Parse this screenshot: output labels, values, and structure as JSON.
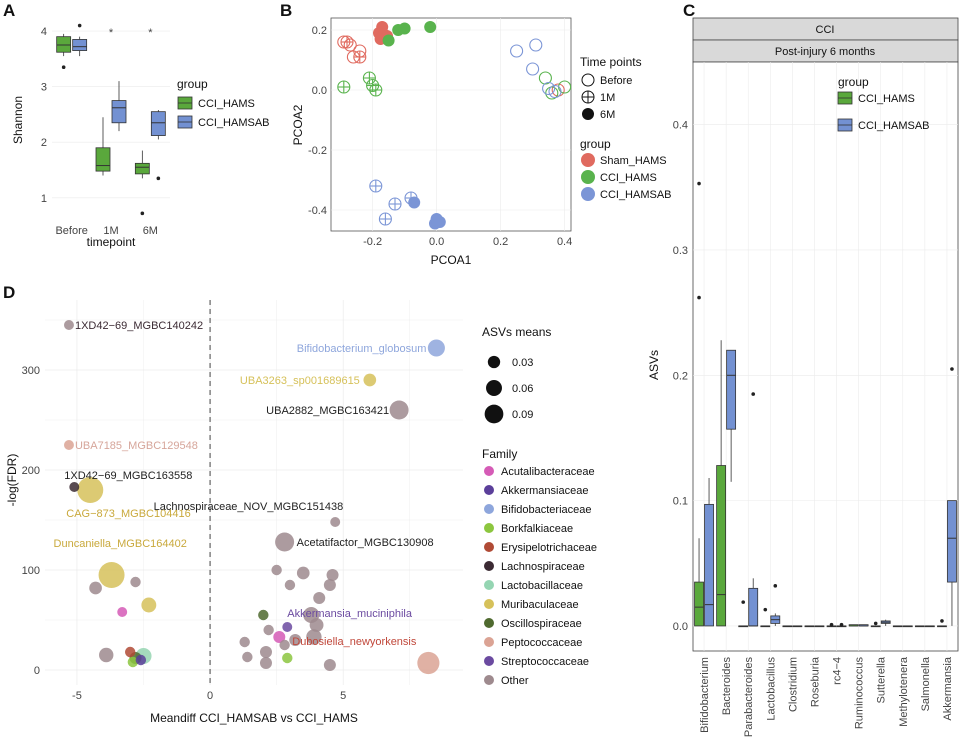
{
  "colors": {
    "hams": "#5aa83c",
    "hamsab": "#7391d2",
    "sham": "#e06a5f",
    "cci": "#59b34d",
    "hamsab_dot": "#7b95d6",
    "grid": "#ebebeb",
    "strip_bg": "#d9d9d9"
  },
  "chart_data": [
    {
      "panel": "A",
      "type": "boxplot",
      "ylabel": "Shannon",
      "xlabel": "timepoint",
      "categories": [
        "Before",
        "1M",
        "6M"
      ],
      "ylim": [
        0.6,
        4.2
      ],
      "yticks": [
        "1",
        "2",
        "3",
        "4"
      ],
      "significance": [
        "",
        "*",
        "*"
      ],
      "legend": {
        "title": "group",
        "labels": [
          "CCI_HAMS",
          "CCI_HAMSAB"
        ]
      },
      "series": [
        {
          "name": "CCI_HAMS",
          "boxes": [
            {
              "min": 3.55,
              "q1": 3.62,
              "median": 3.75,
              "q3": 3.9,
              "max": 3.95,
              "outliers": [
                3.35
              ]
            },
            {
              "min": 1.4,
              "q1": 1.48,
              "median": 1.58,
              "q3": 1.9,
              "max": 2.45,
              "outliers": []
            },
            {
              "min": 1.35,
              "q1": 1.43,
              "median": 1.55,
              "q3": 1.62,
              "max": 1.85,
              "outliers": [
                0.72
              ]
            }
          ]
        },
        {
          "name": "CCI_HAMSAB",
          "boxes": [
            {
              "min": 3.55,
              "q1": 3.65,
              "median": 3.72,
              "q3": 3.85,
              "max": 3.9,
              "outliers": [
                4.1
              ]
            },
            {
              "min": 2.2,
              "q1": 2.35,
              "median": 2.62,
              "q3": 2.75,
              "max": 3.1,
              "outliers": []
            },
            {
              "min": 2.05,
              "q1": 2.12,
              "median": 2.35,
              "q3": 2.55,
              "max": 2.58,
              "outliers": [
                1.35
              ]
            }
          ]
        }
      ]
    },
    {
      "panel": "B",
      "type": "scatter",
      "xlabel": "PCOA1",
      "ylabel": "PCOA2",
      "xlim": [
        -0.33,
        0.42
      ],
      "ylim": [
        -0.47,
        0.24
      ],
      "xticks": [
        -0.2,
        0.0,
        0.2,
        0.4
      ],
      "yticks": [
        0.2,
        0.0,
        -0.2,
        -0.4
      ],
      "xtick_labels": [
        "-0.2",
        "0.0",
        "0.2",
        "0.4"
      ],
      "ytick_labels": [
        "0.2",
        "0.0",
        "-0.2",
        "-0.4"
      ],
      "legend": {
        "time_title": "Time points",
        "time_labels": [
          "Before",
          "1M",
          "6M"
        ],
        "group_title": "group",
        "group_labels": [
          "Sham_HAMS",
          "CCI_HAMS",
          "CCI_HAMSAB"
        ]
      },
      "points": [
        {
          "x": -0.17,
          "y": 0.21,
          "g": 0,
          "t": 2
        },
        {
          "x": -0.18,
          "y": 0.19,
          "g": 0,
          "t": 2
        },
        {
          "x": -0.165,
          "y": 0.185,
          "g": 0,
          "t": 2
        },
        {
          "x": -0.175,
          "y": 0.17,
          "g": 0,
          "t": 2
        },
        {
          "x": -0.155,
          "y": 0.18,
          "g": 0,
          "t": 2
        },
        {
          "x": -0.12,
          "y": 0.2,
          "g": 1,
          "t": 2
        },
        {
          "x": -0.1,
          "y": 0.205,
          "g": 1,
          "t": 2
        },
        {
          "x": -0.02,
          "y": 0.21,
          "g": 1,
          "t": 2
        },
        {
          "x": -0.15,
          "y": 0.165,
          "g": 1,
          "t": 2
        },
        {
          "x": 0.0,
          "y": -0.43,
          "g": 2,
          "t": 2
        },
        {
          "x": 0.01,
          "y": -0.44,
          "g": 2,
          "t": 2
        },
        {
          "x": -0.005,
          "y": -0.445,
          "g": 2,
          "t": 2
        },
        {
          "x": -0.07,
          "y": -0.375,
          "g": 2,
          "t": 2
        },
        {
          "x": 0.003,
          "y": -0.438,
          "g": 2,
          "t": 2
        },
        {
          "x": -0.29,
          "y": 0.16,
          "g": 0,
          "t": 0
        },
        {
          "x": -0.27,
          "y": 0.15,
          "g": 0,
          "t": 0
        },
        {
          "x": -0.24,
          "y": 0.13,
          "g": 0,
          "t": 0
        },
        {
          "x": -0.26,
          "y": 0.11,
          "g": 0,
          "t": 0
        },
        {
          "x": 0.38,
          "y": 0.0,
          "g": 0,
          "t": 0
        },
        {
          "x": 0.34,
          "y": 0.04,
          "g": 1,
          "t": 0
        },
        {
          "x": 0.4,
          "y": 0.01,
          "g": 1,
          "t": 0
        },
        {
          "x": 0.36,
          "y": -0.01,
          "g": 1,
          "t": 0
        },
        {
          "x": 0.25,
          "y": 0.13,
          "g": 2,
          "t": 0
        },
        {
          "x": 0.31,
          "y": 0.15,
          "g": 2,
          "t": 0
        },
        {
          "x": 0.3,
          "y": 0.07,
          "g": 2,
          "t": 0
        },
        {
          "x": 0.37,
          "y": -0.005,
          "g": 2,
          "t": 0
        },
        {
          "x": 0.35,
          "y": 0.005,
          "g": 2,
          "t": 0
        },
        {
          "x": -0.28,
          "y": 0.16,
          "g": 0,
          "t": 1
        },
        {
          "x": -0.24,
          "y": 0.11,
          "g": 0,
          "t": 1
        },
        {
          "x": -0.21,
          "y": 0.04,
          "g": 1,
          "t": 1
        },
        {
          "x": -0.29,
          "y": 0.01,
          "g": 1,
          "t": 1
        },
        {
          "x": -0.2,
          "y": 0.015,
          "g": 1,
          "t": 1
        },
        {
          "x": -0.19,
          "y": 0.0,
          "g": 1,
          "t": 1
        },
        {
          "x": -0.19,
          "y": -0.32,
          "g": 2,
          "t": 1
        },
        {
          "x": -0.13,
          "y": -0.38,
          "g": 2,
          "t": 1
        },
        {
          "x": -0.08,
          "y": -0.36,
          "g": 2,
          "t": 1
        },
        {
          "x": -0.16,
          "y": -0.43,
          "g": 2,
          "t": 1
        }
      ]
    },
    {
      "panel": "C",
      "type": "boxplot",
      "strip_top": "CCI",
      "strip_sub": "Post-injury 6 months",
      "ylabel": "ASVs",
      "ylim": [
        -0.02,
        0.45
      ],
      "yticks": [
        "0.0",
        "0.1",
        "0.2",
        "0.3",
        "0.4"
      ],
      "legend": {
        "title": "group",
        "labels": [
          "CCI_HAMS",
          "CCI_HAMSAB"
        ]
      },
      "categories": [
        "Bifidobacterium",
        "Bacteroides",
        "Parabacteroides",
        "Lactobacillus",
        "Clostridium",
        "Roseburia",
        "rc4−4",
        "Ruminococcus",
        "Sutterella",
        "Methylotenera",
        "Salmonella",
        "Akkermansia"
      ],
      "series": [
        {
          "name": "CCI_HAMS",
          "boxes": [
            {
              "min": 0.0,
              "q1": 0.0,
              "median": 0.015,
              "q3": 0.035,
              "max": 0.07,
              "outliers": [
                0.353,
                0.262
              ]
            },
            {
              "min": 0.0,
              "q1": 0.0,
              "median": 0.025,
              "q3": 0.128,
              "max": 0.228,
              "outliers": []
            },
            {
              "min": 0.0,
              "q1": 0.0,
              "median": 0.0,
              "q3": 0.0,
              "max": 0.0,
              "outliers": [
                0.019
              ]
            },
            {
              "min": 0.0,
              "q1": 0.0,
              "median": 0.0,
              "q3": 0.0,
              "max": 0.0,
              "outliers": [
                0.013
              ]
            },
            {
              "min": 0.0,
              "q1": 0.0,
              "median": 0.0,
              "q3": 0.0,
              "max": 0.0,
              "outliers": []
            },
            {
              "min": 0.0,
              "q1": 0.0,
              "median": 0.0,
              "q3": 0.0,
              "max": 0.0,
              "outliers": []
            },
            {
              "min": 0.0,
              "q1": 0.0,
              "median": 0.0,
              "q3": 0.0,
              "max": 0.0,
              "outliers": [
                0.001
              ]
            },
            {
              "min": 0.0,
              "q1": 0.0,
              "median": 0.0,
              "q3": 0.001,
              "max": 0.001,
              "outliers": []
            },
            {
              "min": 0.0,
              "q1": 0.0,
              "median": 0.0,
              "q3": 0.0,
              "max": 0.0,
              "outliers": [
                0.002
              ]
            },
            {
              "min": 0.0,
              "q1": 0.0,
              "median": 0.0,
              "q3": 0.0,
              "max": 0.0,
              "outliers": []
            },
            {
              "min": 0.0,
              "q1": 0.0,
              "median": 0.0,
              "q3": 0.0,
              "max": 0.0,
              "outliers": []
            },
            {
              "min": 0.0,
              "q1": 0.0,
              "median": 0.0,
              "q3": 0.0,
              "max": 0.0,
              "outliers": [
                0.004
              ]
            }
          ]
        },
        {
          "name": "CCI_HAMSAB",
          "boxes": [
            {
              "min": 0.0,
              "q1": 0.0,
              "median": 0.017,
              "q3": 0.097,
              "max": 0.118,
              "outliers": []
            },
            {
              "min": 0.115,
              "q1": 0.157,
              "median": 0.2,
              "q3": 0.22,
              "max": 0.22,
              "outliers": []
            },
            {
              "min": 0.0,
              "q1": 0.0,
              "median": 0.0,
              "q3": 0.03,
              "max": 0.038,
              "outliers": [
                0.185
              ]
            },
            {
              "min": 0.0,
              "q1": 0.002,
              "median": 0.005,
              "q3": 0.008,
              "max": 0.01,
              "outliers": [
                0.032
              ]
            },
            {
              "min": 0.0,
              "q1": 0.0,
              "median": 0.0,
              "q3": 0.0,
              "max": 0.0,
              "outliers": []
            },
            {
              "min": 0.0,
              "q1": 0.0,
              "median": 0.0,
              "q3": 0.0,
              "max": 0.0,
              "outliers": []
            },
            {
              "min": 0.0,
              "q1": 0.0,
              "median": 0.0,
              "q3": 0.0,
              "max": 0.0,
              "outliers": [
                0.001
              ]
            },
            {
              "min": 0.0,
              "q1": 0.0,
              "median": 0.0,
              "q3": 0.001,
              "max": 0.001,
              "outliers": []
            },
            {
              "min": 0.0,
              "q1": 0.002,
              "median": 0.003,
              "q3": 0.004,
              "max": 0.005,
              "outliers": []
            },
            {
              "min": 0.0,
              "q1": 0.0,
              "median": 0.0,
              "q3": 0.0,
              "max": 0.0,
              "outliers": []
            },
            {
              "min": 0.0,
              "q1": 0.0,
              "median": 0.0,
              "q3": 0.0,
              "max": 0.0,
              "outliers": []
            },
            {
              "min": 0.0,
              "q1": 0.035,
              "median": 0.07,
              "q3": 0.1,
              "max": 0.1,
              "outliers": [
                0.205
              ]
            }
          ]
        }
      ]
    },
    {
      "panel": "D",
      "type": "scatter",
      "xlabel": "Meandiff CCI_HAMSAB vs CCI_HAMS",
      "ylabel": "-log(FDR)",
      "xlim": [
        -6.2,
        9.5
      ],
      "ylim": [
        -15,
        370
      ],
      "xticks": [
        -5,
        0,
        5
      ],
      "xtick_labels": [
        "-5",
        "0",
        "5"
      ],
      "yticks": [
        0,
        100,
        200,
        300
      ],
      "size_legend": {
        "title": "ASVs means",
        "labels": [
          "0.03",
          "0.06",
          "0.09"
        ],
        "values": [
          0.03,
          0.06,
          0.09
        ]
      },
      "family_legend": {
        "title": "Family",
        "labels": [
          "Acutalibacteraceae",
          "Akkermansiaceae",
          "Bifidobacteriaceae",
          "Borkfalkiaceae",
          "Erysipelotrichaceae",
          "Lachnospiraceae",
          "Lactobacillaceae",
          "Muribaculaceae",
          "Oscillospiraceae",
          "Peptococcaceae",
          "Streptococcaceae",
          "Other"
        ],
        "colors": [
          "#d55bb6",
          "#5b3f9a",
          "#8ea6dc",
          "#8cc63f",
          "#b04a35",
          "#3b2a33",
          "#95d5b2",
          "#d6c15a",
          "#4f6a2f",
          "#dba394",
          "#6b4aa0",
          "#9e8a8e"
        ]
      },
      "points": [
        {
          "x": -5.3,
          "y": 345,
          "fam": 11,
          "size": 0.005,
          "label": "1XD42−69_MGBC140242"
        },
        {
          "x": -5.3,
          "y": 225,
          "fam": 9,
          "size": 0.005,
          "label": "UBA7185_MGBC129548"
        },
        {
          "x": -5.1,
          "y": 183,
          "fam": 5,
          "size": 0.005,
          "label": "1XD42−69_MGBC163558"
        },
        {
          "x": -4.5,
          "y": 180,
          "fam": 7,
          "size": 0.09,
          "label": "CAG−873_MGBC104416"
        },
        {
          "x": -3.7,
          "y": 95,
          "fam": 7,
          "size": 0.09,
          "label": "Duncaniella_MGBC164402"
        },
        {
          "x": 8.5,
          "y": 322,
          "fam": 2,
          "size": 0.03,
          "label": "Bifidobacterium_globosum"
        },
        {
          "x": 6.0,
          "y": 290,
          "fam": 7,
          "size": 0.012,
          "label": "UBA3263_sp001689615"
        },
        {
          "x": 7.1,
          "y": 260,
          "fam": 11,
          "size": 0.04,
          "label": "UBA2882_MGBC163421"
        },
        {
          "x": 4.7,
          "y": 148,
          "fam": 11,
          "size": 0.005,
          "label": "Lachnospiraceae_NOV_MGBC151438"
        },
        {
          "x": 2.8,
          "y": 128,
          "fam": 11,
          "size": 0.04,
          "label": "Acetatifactor_MGBC130908"
        },
        {
          "x": 2.9,
          "y": 43,
          "fam": 10,
          "size": 0.005,
          "label": "Akkermansia_muciniphila"
        },
        {
          "x": 8.2,
          "y": 7,
          "fam": 9,
          "size": 0.06,
          "label": "Dubosiella_newyorkensis"
        },
        {
          "x": -4.3,
          "y": 82,
          "fam": 11,
          "size": 0.012,
          "label": ""
        },
        {
          "x": -2.8,
          "y": 88,
          "fam": 11,
          "size": 0.006,
          "label": ""
        },
        {
          "x": -2.3,
          "y": 65,
          "fam": 7,
          "size": 0.02,
          "label": ""
        },
        {
          "x": -3.3,
          "y": 58,
          "fam": 0,
          "size": 0.005,
          "label": ""
        },
        {
          "x": -3.9,
          "y": 15,
          "fam": 11,
          "size": 0.018,
          "label": ""
        },
        {
          "x": -3.0,
          "y": 18,
          "fam": 4,
          "size": 0.006,
          "label": ""
        },
        {
          "x": -2.8,
          "y": 12,
          "fam": 8,
          "size": 0.01,
          "label": ""
        },
        {
          "x": -2.5,
          "y": 14,
          "fam": 6,
          "size": 0.025,
          "label": ""
        },
        {
          "x": -2.9,
          "y": 8,
          "fam": 3,
          "size": 0.006,
          "label": ""
        },
        {
          "x": -2.6,
          "y": 10,
          "fam": 1,
          "size": 0.006,
          "label": ""
        },
        {
          "x": 2.5,
          "y": 100,
          "fam": 11,
          "size": 0.006,
          "label": ""
        },
        {
          "x": 3.5,
          "y": 97,
          "fam": 11,
          "size": 0.012,
          "label": ""
        },
        {
          "x": 4.6,
          "y": 95,
          "fam": 11,
          "size": 0.01,
          "label": ""
        },
        {
          "x": 3.0,
          "y": 85,
          "fam": 11,
          "size": 0.006,
          "label": ""
        },
        {
          "x": 4.5,
          "y": 85,
          "fam": 11,
          "size": 0.01,
          "label": ""
        },
        {
          "x": 4.1,
          "y": 72,
          "fam": 11,
          "size": 0.01,
          "label": ""
        },
        {
          "x": 3.8,
          "y": 55,
          "fam": 11,
          "size": 0.025,
          "label": ""
        },
        {
          "x": 4.0,
          "y": 45,
          "fam": 11,
          "size": 0.016,
          "label": ""
        },
        {
          "x": 3.9,
          "y": 33,
          "fam": 11,
          "size": 0.022,
          "label": ""
        },
        {
          "x": 3.2,
          "y": 30,
          "fam": 11,
          "size": 0.01,
          "label": ""
        },
        {
          "x": 2.6,
          "y": 33,
          "fam": 0,
          "size": 0.01,
          "label": ""
        },
        {
          "x": 2.2,
          "y": 40,
          "fam": 11,
          "size": 0.006,
          "label": ""
        },
        {
          "x": 2.0,
          "y": 55,
          "fam": 8,
          "size": 0.006,
          "label": ""
        },
        {
          "x": 1.3,
          "y": 28,
          "fam": 11,
          "size": 0.006,
          "label": ""
        },
        {
          "x": 1.4,
          "y": 13,
          "fam": 11,
          "size": 0.006,
          "label": ""
        },
        {
          "x": 2.1,
          "y": 18,
          "fam": 11,
          "size": 0.01,
          "label": ""
        },
        {
          "x": 2.8,
          "y": 25,
          "fam": 11,
          "size": 0.006,
          "label": ""
        },
        {
          "x": 2.9,
          "y": 12,
          "fam": 3,
          "size": 0.006,
          "label": ""
        },
        {
          "x": 2.1,
          "y": 7,
          "fam": 11,
          "size": 0.01,
          "label": ""
        },
        {
          "x": 4.5,
          "y": 5,
          "fam": 11,
          "size": 0.01,
          "label": ""
        }
      ]
    }
  ]
}
